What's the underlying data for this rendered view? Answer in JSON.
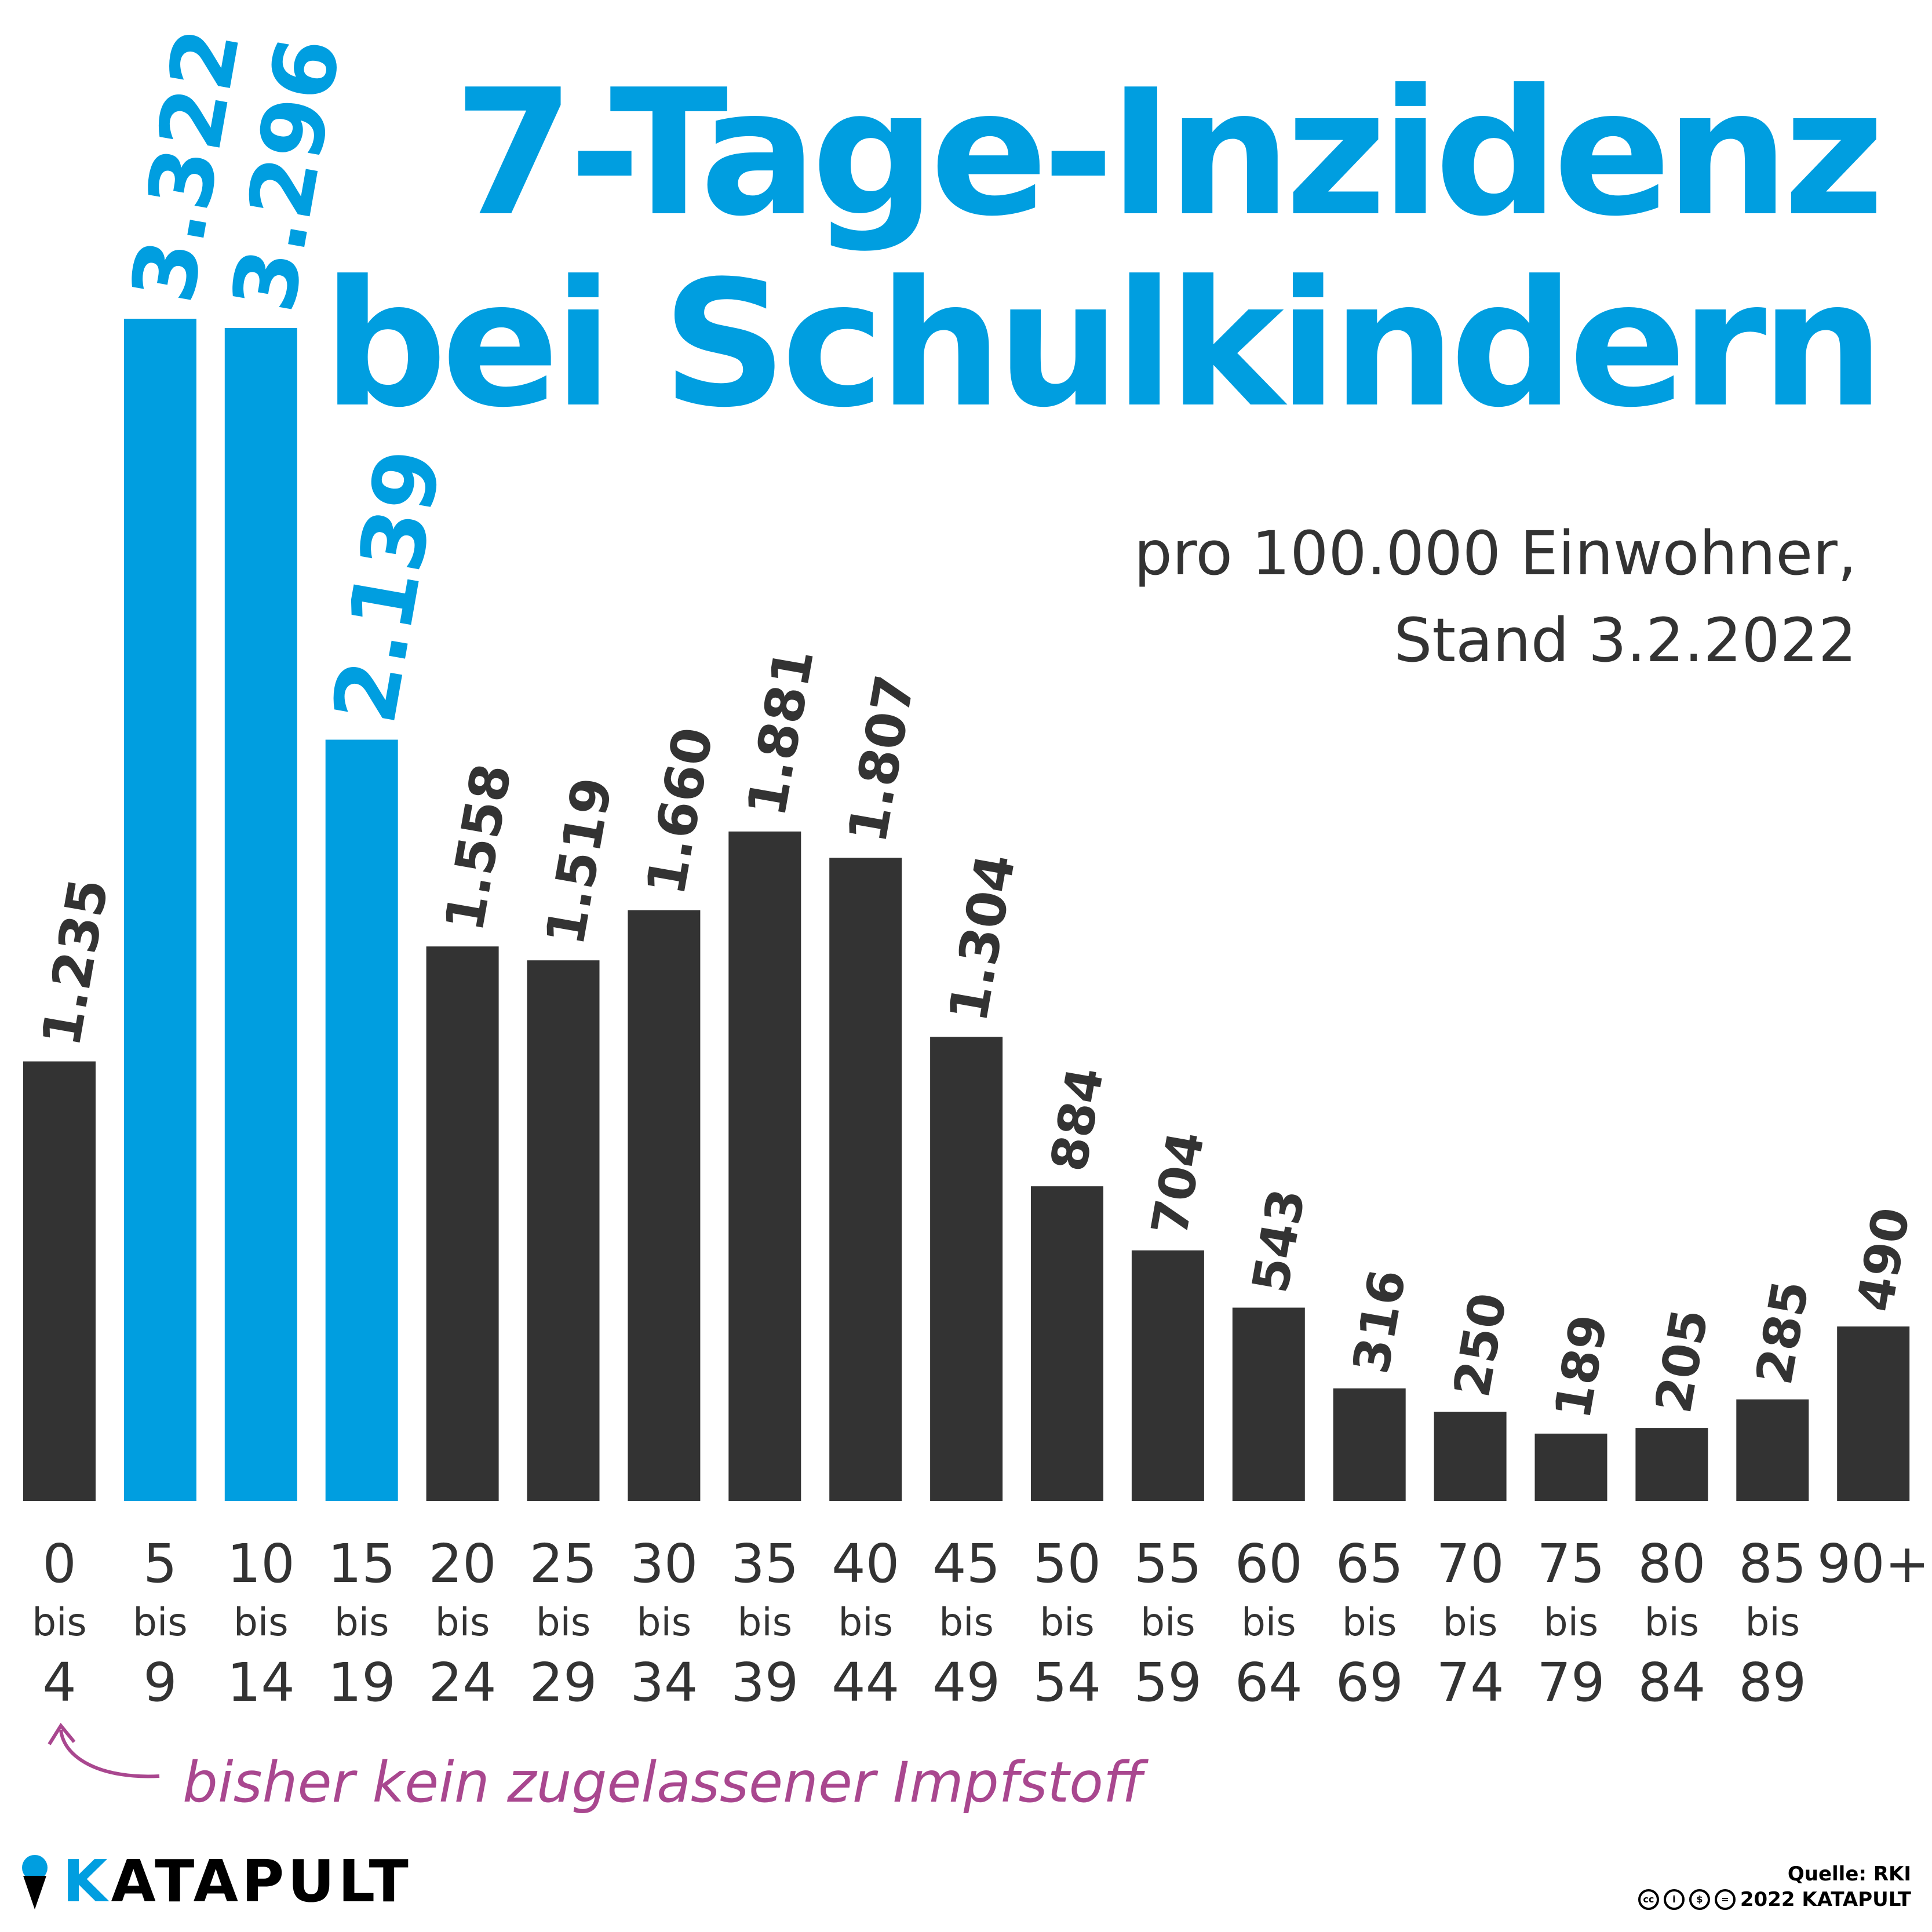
{
  "title": {
    "line1": "7-Tage-Inzidenz",
    "line2": "bei Schulkindern"
  },
  "subtitle": {
    "line1": "pro 100.000 Einwohner,",
    "line2": "Stand 3.2.2022"
  },
  "annotation": "bisher kein zugelassener Impfstoff",
  "logo": {
    "k": "K",
    "rest": "ATAPULT"
  },
  "credits": {
    "source": "Quelle: RKI",
    "copyright": "2022 KATAPULT"
  },
  "colors": {
    "highlight": "#009ee0",
    "default": "#333333",
    "annotation": "#a9478f"
  },
  "chart_data": {
    "type": "bar",
    "title": "7-Tage-Inzidenz bei Schulkindern",
    "subtitle": "pro 100.000 Einwohner, Stand 3.2.2022",
    "categories": [
      [
        "0",
        "bis",
        "4"
      ],
      [
        "5",
        "bis",
        "9"
      ],
      [
        "10",
        "bis",
        "14"
      ],
      [
        "15",
        "bis",
        "19"
      ],
      [
        "20",
        "bis",
        "24"
      ],
      [
        "25",
        "bis",
        "29"
      ],
      [
        "30",
        "bis",
        "34"
      ],
      [
        "35",
        "bis",
        "39"
      ],
      [
        "40",
        "bis",
        "44"
      ],
      [
        "45",
        "bis",
        "49"
      ],
      [
        "50",
        "bis",
        "54"
      ],
      [
        "55",
        "bis",
        "59"
      ],
      [
        "60",
        "bis",
        "64"
      ],
      [
        "65",
        "bis",
        "69"
      ],
      [
        "70",
        "bis",
        "74"
      ],
      [
        "75",
        "bis",
        "79"
      ],
      [
        "80",
        "bis",
        "84"
      ],
      [
        "85",
        "bis",
        "89"
      ],
      [
        "90+"
      ]
    ],
    "values": [
      1235,
      3322,
      3296,
      2139,
      1558,
      1519,
      1660,
      1881,
      1807,
      1304,
      884,
      704,
      543,
      316,
      250,
      189,
      205,
      285,
      490
    ],
    "value_labels": [
      "1.235",
      "3.322",
      "3.296",
      "2.139",
      "1.558",
      "1.519",
      "1.660",
      "1.881",
      "1.807",
      "1.304",
      "884",
      "704",
      "543",
      "316",
      "250",
      "189",
      "205",
      "285",
      "490"
    ],
    "highlighted": [
      1,
      2,
      3
    ],
    "ylim": [
      0,
      3322
    ],
    "grid": false,
    "legend": "none"
  }
}
